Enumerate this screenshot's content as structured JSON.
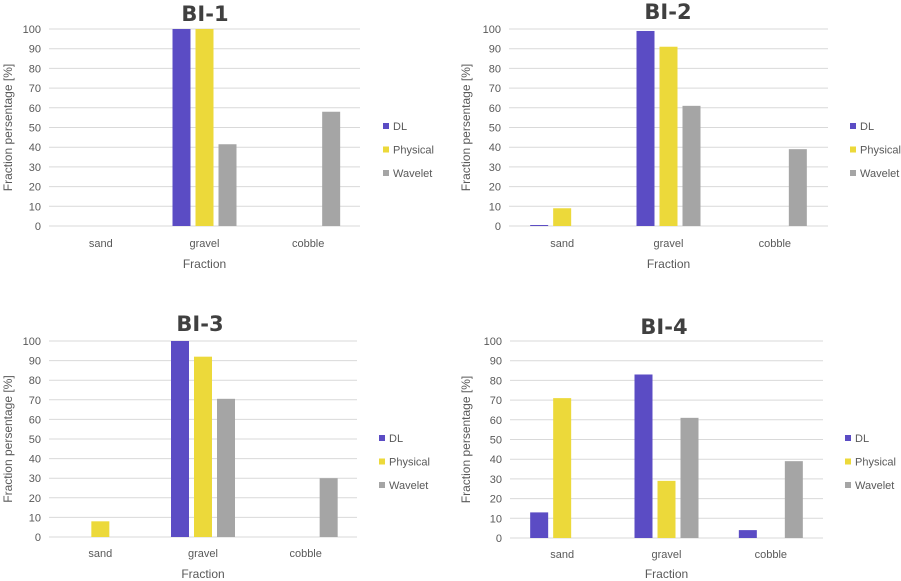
{
  "colors": {
    "DL": "#5b4cc4",
    "Physical": "#ecd93a",
    "Wavelet": "#a5a5a5"
  },
  "chart_data": [
    {
      "type": "bar",
      "title": "BI-1",
      "xlabel": "Fraction",
      "ylabel": "Fraction persentage [%]",
      "categories": [
        "sand",
        "gravel",
        "cobble"
      ],
      "ylim": [
        0,
        100
      ],
      "yticks": [
        0,
        10,
        20,
        30,
        40,
        50,
        60,
        70,
        80,
        90,
        100
      ],
      "grid": true,
      "legend": "right",
      "series": [
        {
          "name": "DL",
          "values": [
            0,
            100,
            0
          ]
        },
        {
          "name": "Physical",
          "values": [
            0,
            100,
            0
          ]
        },
        {
          "name": "Wavelet",
          "values": [
            0,
            41.5,
            58
          ]
        }
      ]
    },
    {
      "type": "bar",
      "title": "BI-2",
      "xlabel": "Fraction",
      "ylabel": "Fraction persentage [%]",
      "categories": [
        "sand",
        "gravel",
        "cobble"
      ],
      "ylim": [
        0,
        100
      ],
      "yticks": [
        0,
        10,
        20,
        30,
        40,
        50,
        60,
        70,
        80,
        90,
        100
      ],
      "grid": true,
      "legend": "right",
      "series": [
        {
          "name": "DL",
          "values": [
            0.5,
            99,
            0
          ]
        },
        {
          "name": "Physical",
          "values": [
            9,
            91,
            0
          ]
        },
        {
          "name": "Wavelet",
          "values": [
            0,
            61,
            39
          ]
        }
      ]
    },
    {
      "type": "bar",
      "title": "BI-3",
      "xlabel": "Fraction",
      "ylabel": "Fraction persentage [%]",
      "categories": [
        "sand",
        "gravel",
        "cobble"
      ],
      "ylim": [
        0,
        100
      ],
      "yticks": [
        0,
        10,
        20,
        30,
        40,
        50,
        60,
        70,
        80,
        90,
        100
      ],
      "grid": true,
      "legend": "right",
      "series": [
        {
          "name": "DL",
          "values": [
            0,
            100,
            0
          ]
        },
        {
          "name": "Physical",
          "values": [
            8,
            92,
            0
          ]
        },
        {
          "name": "Wavelet",
          "values": [
            0,
            70.5,
            30
          ]
        }
      ]
    },
    {
      "type": "bar",
      "title": "BI-4",
      "xlabel": "Fraction",
      "ylabel": "Fraction persentage [%]",
      "categories": [
        "sand",
        "gravel",
        "cobble"
      ],
      "ylim": [
        0,
        100
      ],
      "yticks": [
        0,
        10,
        20,
        30,
        40,
        50,
        60,
        70,
        80,
        90,
        100
      ],
      "grid": true,
      "legend": "right",
      "series": [
        {
          "name": "DL",
          "values": [
            13,
            83,
            4
          ]
        },
        {
          "name": "Physical",
          "values": [
            71,
            29,
            0
          ]
        },
        {
          "name": "Wavelet",
          "values": [
            0,
            61,
            39
          ]
        }
      ]
    }
  ]
}
